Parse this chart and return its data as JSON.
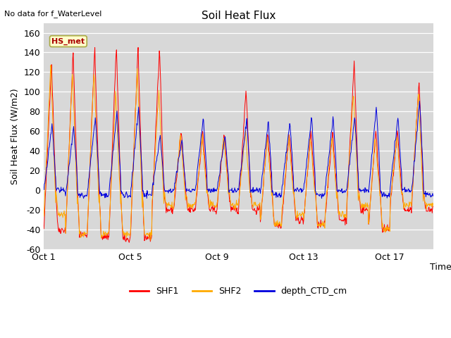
{
  "title": "Soil Heat Flux",
  "subtitle": "No data for f_WaterLevel",
  "ylabel": "Soil Heat Flux (W/m2)",
  "xlabel": "Time",
  "ylim": [
    -60,
    170
  ],
  "yticks": [
    -60,
    -40,
    -20,
    0,
    20,
    40,
    60,
    80,
    100,
    120,
    140,
    160
  ],
  "xtick_labels": [
    "Oct 1",
    "Oct 5",
    "Oct 9",
    "Oct 13",
    "Oct 17"
  ],
  "xtick_positions": [
    0,
    4,
    8,
    12,
    16
  ],
  "legend_labels": [
    "SHF1",
    "SHF2",
    "depth_CTD_cm"
  ],
  "line_colors": [
    "#ff0000",
    "#ffaa00",
    "#0000dd"
  ],
  "annotation_text": "HS_met",
  "annotation_color": "#aa0000",
  "annotation_bg": "#ffffcc",
  "annotation_border": "#aaaa44",
  "plot_bg": "#d8d8d8",
  "n_days": 18,
  "spd": 48,
  "random_seed": 42,
  "shf1_day_amps": [
    130,
    141,
    145,
    147,
    144,
    144,
    60,
    60,
    60,
    104,
    60,
    60,
    60,
    60,
    130,
    60,
    60,
    113
  ],
  "shf1_night_amps": [
    -40,
    -45,
    -47,
    -50,
    -48,
    -20,
    -20,
    -20,
    -20,
    -20,
    -35,
    -30,
    -35,
    -30,
    -20,
    -40,
    -20,
    -20
  ],
  "shf2_day_amps": [
    128,
    120,
    124,
    98,
    124,
    100,
    55,
    55,
    55,
    60,
    55,
    55,
    55,
    55,
    100,
    55,
    55,
    100
  ],
  "shf2_night_amps": [
    -25,
    -45,
    -45,
    -45,
    -45,
    -15,
    -15,
    -15,
    -15,
    -15,
    -35,
    -25,
    -35,
    -25,
    -15,
    -40,
    -15,
    -15
  ],
  "shf3_day_amps": [
    67,
    65,
    75,
    80,
    83,
    55,
    50,
    75,
    55,
    72,
    70,
    70,
    75,
    75,
    75,
    85,
    75,
    92
  ],
  "shf3_night_amps": [
    0,
    -5,
    -5,
    -5,
    -5,
    0,
    0,
    0,
    0,
    0,
    -5,
    0,
    -5,
    0,
    0,
    -5,
    0,
    -5
  ]
}
